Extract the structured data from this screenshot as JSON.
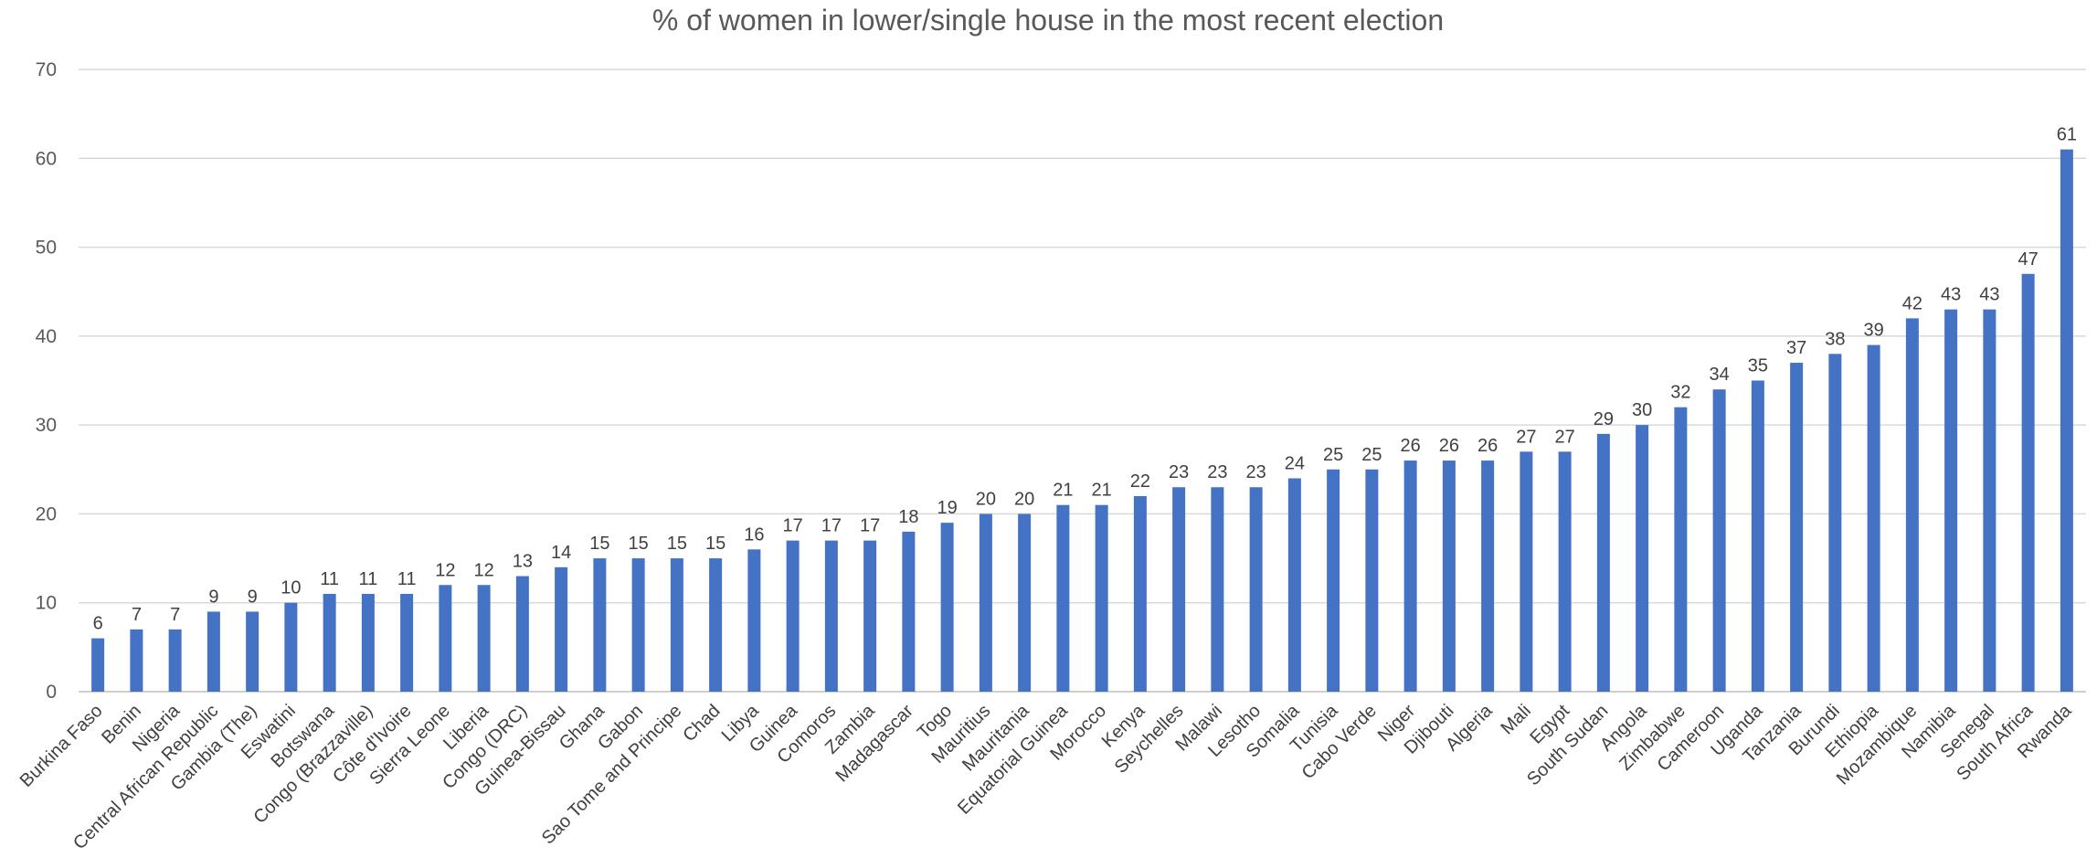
{
  "chart_data": {
    "type": "bar",
    "title": "% of women in lower/single house in the most recent election",
    "xlabel": "",
    "ylabel": "",
    "ylim": [
      0,
      70
    ],
    "yticks": [
      0,
      10,
      20,
      30,
      40,
      50,
      60,
      70
    ],
    "grid": true,
    "bar_color": "#4472C4",
    "categories": [
      "Burkina Faso",
      "Benin",
      "Nigeria",
      "Central African Republic",
      "Gambia (The)",
      "Eswatini",
      "Botswana",
      "Congo (Brazzaville)",
      "Côte d'Ivoire",
      "Sierra Leone",
      "Liberia",
      "Congo (DRC)",
      "Guinea-Bissau",
      "Ghana",
      "Gabon",
      "Sao Tome and Principe",
      "Chad",
      "Libya",
      "Guinea",
      "Comoros",
      "Zambia",
      "Madagascar",
      "Togo",
      "Mauritius",
      "Mauritania",
      "Equatorial Guinea",
      "Morocco",
      "Kenya",
      "Seychelles",
      "Malawi",
      "Lesotho",
      "Somalia",
      "Tunisia",
      "Cabo Verde",
      "Niger",
      "Djibouti",
      "Algeria",
      "Mali",
      "Egypt",
      "South Sudan",
      "Angola",
      "Zimbabwe",
      "Cameroon",
      "Uganda",
      "Tanzania",
      "Burundi",
      "Ethiopia",
      "Mozambique",
      "Namibia",
      "Senegal",
      "South Africa",
      "Rwanda"
    ],
    "values": [
      6,
      7,
      7,
      9,
      9,
      10,
      11,
      11,
      11,
      12,
      12,
      13,
      14,
      15,
      15,
      15,
      15,
      16,
      17,
      17,
      17,
      18,
      19,
      20,
      20,
      21,
      21,
      22,
      23,
      23,
      23,
      24,
      25,
      25,
      26,
      26,
      26,
      27,
      27,
      29,
      30,
      32,
      34,
      35,
      37,
      38,
      39,
      42,
      43,
      43,
      47,
      61
    ]
  }
}
